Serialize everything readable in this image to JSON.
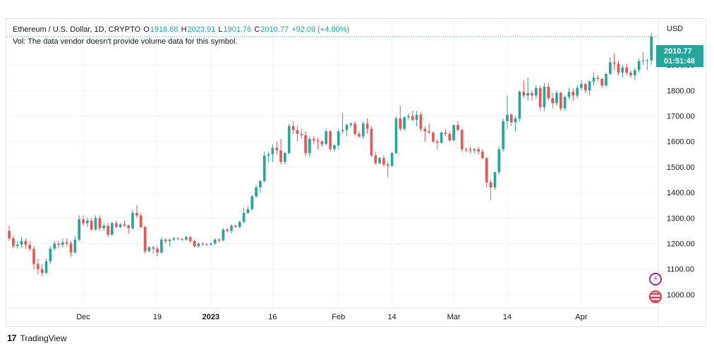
{
  "header": {
    "symbol": "Ethereum / U.S. Dollar, 1D, CRYPTO",
    "o_label": "O",
    "o_value": "1918.68",
    "h_label": "H",
    "h_value": "2023.91",
    "l_label": "L",
    "l_value": "1901.76",
    "c_label": "C",
    "c_value": "2010.77",
    "change": "+92.09 (+4.80%)",
    "volume_note": "Vol: The data vendor doesn't provide volume data for this symbol."
  },
  "price_scale": {
    "currency": "USD",
    "last_price": "2010.77",
    "countdown": "01:51:48"
  },
  "footer": {
    "brand": "TradingView"
  },
  "colors": {
    "up": "#26a69a",
    "down": "#ef5350",
    "grid": "#f0f3fa",
    "axis_text": "#131722"
  },
  "chart_data": {
    "type": "candlestick",
    "title": "Ethereum / U.S. Dollar, 1D, CRYPTO",
    "ylabel": "USD",
    "ylim": [
      950,
      2080
    ],
    "y_ticks": [
      1000,
      1100,
      1200,
      1300,
      1400,
      1500,
      1600,
      1700,
      1800,
      1900
    ],
    "x_ticks": [
      "Dec",
      "19",
      "2023",
      "16",
      "Feb",
      "14",
      "Mar",
      "14",
      "Apr"
    ],
    "x_range": [
      "2022-11-13",
      "2023-04-19"
    ],
    "x_tick_dates": [
      "2022-12-01",
      "2022-12-19",
      "2023-01-01",
      "2023-01-16",
      "2023-02-01",
      "2023-02-14",
      "2023-03-01",
      "2023-03-14",
      "2023-04-01"
    ],
    "grid": true,
    "candles": [
      [
        "2022-11-13",
        1250,
        1270,
        1210,
        1220
      ],
      [
        "2022-11-14",
        1220,
        1230,
        1180,
        1190
      ],
      [
        "2022-11-15",
        1190,
        1210,
        1180,
        1195
      ],
      [
        "2022-11-16",
        1195,
        1225,
        1185,
        1210
      ],
      [
        "2022-11-17",
        1210,
        1220,
        1180,
        1195
      ],
      [
        "2022-11-18",
        1195,
        1210,
        1170,
        1180
      ],
      [
        "2022-11-19",
        1180,
        1190,
        1100,
        1120
      ],
      [
        "2022-11-20",
        1120,
        1140,
        1080,
        1100
      ],
      [
        "2022-11-21",
        1100,
        1120,
        1070,
        1085
      ],
      [
        "2022-11-22",
        1085,
        1140,
        1080,
        1130
      ],
      [
        "2022-11-23",
        1130,
        1190,
        1120,
        1180
      ],
      [
        "2022-11-24",
        1180,
        1210,
        1170,
        1200
      ],
      [
        "2022-11-25",
        1200,
        1210,
        1180,
        1195
      ],
      [
        "2022-11-26",
        1195,
        1220,
        1185,
        1205
      ],
      [
        "2022-11-27",
        1205,
        1220,
        1190,
        1200
      ],
      [
        "2022-11-28",
        1200,
        1210,
        1150,
        1165
      ],
      [
        "2022-11-29",
        1165,
        1230,
        1160,
        1215
      ],
      [
        "2022-11-30",
        1215,
        1310,
        1210,
        1295
      ],
      [
        "2022-12-01",
        1295,
        1310,
        1270,
        1280
      ],
      [
        "2022-12-02",
        1280,
        1300,
        1265,
        1290
      ],
      [
        "2022-12-03",
        1290,
        1300,
        1250,
        1255
      ],
      [
        "2022-12-04",
        1255,
        1310,
        1250,
        1300
      ],
      [
        "2022-12-05",
        1300,
        1310,
        1250,
        1260
      ],
      [
        "2022-12-06",
        1260,
        1280,
        1250,
        1270
      ],
      [
        "2022-12-07",
        1270,
        1280,
        1225,
        1235
      ],
      [
        "2022-12-08",
        1235,
        1285,
        1230,
        1280
      ],
      [
        "2022-12-09",
        1280,
        1290,
        1260,
        1265
      ],
      [
        "2022-12-10",
        1265,
        1280,
        1260,
        1275
      ],
      [
        "2022-12-11",
        1275,
        1290,
        1265,
        1270
      ],
      [
        "2022-12-12",
        1270,
        1275,
        1240,
        1260
      ],
      [
        "2022-12-13",
        1260,
        1330,
        1255,
        1320
      ],
      [
        "2022-12-14",
        1320,
        1350,
        1300,
        1310
      ],
      [
        "2022-12-15",
        1310,
        1320,
        1260,
        1265
      ],
      [
        "2022-12-16",
        1265,
        1270,
        1160,
        1170
      ],
      [
        "2022-12-17",
        1170,
        1190,
        1165,
        1185
      ],
      [
        "2022-12-18",
        1185,
        1190,
        1160,
        1180
      ],
      [
        "2022-12-19",
        1180,
        1190,
        1150,
        1165
      ],
      [
        "2022-12-20",
        1165,
        1225,
        1160,
        1215
      ],
      [
        "2022-12-21",
        1215,
        1220,
        1200,
        1210
      ],
      [
        "2022-12-22",
        1210,
        1220,
        1190,
        1215
      ],
      [
        "2022-12-23",
        1215,
        1225,
        1210,
        1220
      ],
      [
        "2022-12-24",
        1220,
        1225,
        1215,
        1218
      ],
      [
        "2022-12-25",
        1218,
        1222,
        1210,
        1215
      ],
      [
        "2022-12-26",
        1215,
        1230,
        1210,
        1225
      ],
      [
        "2022-12-27",
        1225,
        1230,
        1200,
        1210
      ],
      [
        "2022-12-28",
        1210,
        1215,
        1185,
        1190
      ],
      [
        "2022-12-29",
        1190,
        1205,
        1185,
        1200
      ],
      [
        "2022-12-30",
        1200,
        1205,
        1190,
        1198
      ],
      [
        "2022-12-31",
        1198,
        1200,
        1192,
        1195
      ],
      [
        "2023-01-01",
        1195,
        1205,
        1192,
        1200
      ],
      [
        "2023-01-02",
        1200,
        1220,
        1195,
        1215
      ],
      [
        "2023-01-03",
        1215,
        1220,
        1205,
        1212
      ],
      [
        "2023-01-04",
        1212,
        1260,
        1210,
        1255
      ],
      [
        "2023-01-05",
        1255,
        1260,
        1245,
        1250
      ],
      [
        "2023-01-06",
        1250,
        1275,
        1240,
        1270
      ],
      [
        "2023-01-07",
        1270,
        1275,
        1262,
        1265
      ],
      [
        "2023-01-08",
        1265,
        1290,
        1260,
        1285
      ],
      [
        "2023-01-09",
        1285,
        1340,
        1280,
        1320
      ],
      [
        "2023-01-10",
        1320,
        1345,
        1315,
        1335
      ],
      [
        "2023-01-11",
        1335,
        1390,
        1330,
        1385
      ],
      [
        "2023-01-12",
        1385,
        1430,
        1380,
        1420
      ],
      [
        "2023-01-13",
        1420,
        1450,
        1400,
        1445
      ],
      [
        "2023-01-14",
        1445,
        1560,
        1440,
        1545
      ],
      [
        "2023-01-15",
        1545,
        1560,
        1520,
        1550
      ],
      [
        "2023-01-16",
        1550,
        1590,
        1520,
        1575
      ],
      [
        "2023-01-17",
        1575,
        1600,
        1550,
        1565
      ],
      [
        "2023-01-18",
        1565,
        1610,
        1510,
        1520
      ],
      [
        "2023-01-19",
        1520,
        1560,
        1510,
        1555
      ],
      [
        "2023-01-20",
        1555,
        1670,
        1550,
        1660
      ],
      [
        "2023-01-21",
        1660,
        1680,
        1630,
        1645
      ],
      [
        "2023-01-22",
        1645,
        1660,
        1600,
        1630
      ],
      [
        "2023-01-23",
        1630,
        1650,
        1610,
        1625
      ],
      [
        "2023-01-24",
        1625,
        1640,
        1540,
        1555
      ],
      [
        "2023-01-25",
        1555,
        1620,
        1540,
        1610
      ],
      [
        "2023-01-26",
        1610,
        1620,
        1590,
        1605
      ],
      [
        "2023-01-27",
        1605,
        1615,
        1570,
        1600
      ],
      [
        "2023-01-28",
        1600,
        1605,
        1580,
        1590
      ],
      [
        "2023-01-29",
        1590,
        1650,
        1585,
        1640
      ],
      [
        "2023-01-30",
        1640,
        1645,
        1560,
        1570
      ],
      [
        "2023-01-31",
        1570,
        1590,
        1560,
        1585
      ],
      [
        "2023-02-01",
        1585,
        1650,
        1570,
        1640
      ],
      [
        "2023-02-02",
        1640,
        1710,
        1630,
        1645
      ],
      [
        "2023-02-03",
        1645,
        1670,
        1620,
        1665
      ],
      [
        "2023-02-04",
        1665,
        1675,
        1655,
        1670
      ],
      [
        "2023-02-05",
        1670,
        1680,
        1620,
        1630
      ],
      [
        "2023-02-06",
        1630,
        1640,
        1615,
        1620
      ],
      [
        "2023-02-07",
        1620,
        1680,
        1610,
        1670
      ],
      [
        "2023-02-08",
        1670,
        1690,
        1630,
        1650
      ],
      [
        "2023-02-09",
        1650,
        1660,
        1540,
        1545
      ],
      [
        "2023-02-10",
        1545,
        1560,
        1510,
        1515
      ],
      [
        "2023-02-11",
        1515,
        1540,
        1510,
        1535
      ],
      [
        "2023-02-12",
        1535,
        1545,
        1500,
        1510
      ],
      [
        "2023-02-13",
        1510,
        1520,
        1460,
        1505
      ],
      [
        "2023-02-14",
        1505,
        1560,
        1500,
        1555
      ],
      [
        "2023-02-15",
        1555,
        1700,
        1550,
        1690
      ],
      [
        "2023-02-16",
        1690,
        1740,
        1640,
        1650
      ],
      [
        "2023-02-17",
        1650,
        1700,
        1640,
        1695
      ],
      [
        "2023-02-18",
        1695,
        1710,
        1685,
        1700
      ],
      [
        "2023-02-19",
        1700,
        1720,
        1680,
        1685
      ],
      [
        "2023-02-20",
        1685,
        1720,
        1660,
        1705
      ],
      [
        "2023-02-21",
        1705,
        1715,
        1640,
        1650
      ],
      [
        "2023-02-22",
        1650,
        1660,
        1600,
        1640
      ],
      [
        "2023-02-23",
        1640,
        1670,
        1630,
        1635
      ],
      [
        "2023-02-24",
        1635,
        1640,
        1595,
        1600
      ],
      [
        "2023-02-25",
        1600,
        1610,
        1570,
        1595
      ],
      [
        "2023-02-26",
        1595,
        1640,
        1590,
        1635
      ],
      [
        "2023-02-27",
        1635,
        1650,
        1620,
        1630
      ],
      [
        "2023-02-28",
        1630,
        1640,
        1600,
        1605
      ],
      [
        "2023-03-01",
        1605,
        1660,
        1600,
        1665
      ],
      [
        "2023-03-02",
        1665,
        1680,
        1640,
        1645
      ],
      [
        "2023-03-03",
        1645,
        1650,
        1560,
        1570
      ],
      [
        "2023-03-04",
        1570,
        1575,
        1560,
        1568
      ],
      [
        "2023-03-05",
        1568,
        1580,
        1555,
        1565
      ],
      [
        "2023-03-06",
        1565,
        1575,
        1555,
        1570
      ],
      [
        "2023-03-07",
        1570,
        1580,
        1550,
        1560
      ],
      [
        "2023-03-08",
        1560,
        1570,
        1530,
        1535
      ],
      [
        "2023-03-09",
        1535,
        1540,
        1420,
        1440
      ],
      [
        "2023-03-10",
        1440,
        1450,
        1370,
        1420
      ],
      [
        "2023-03-11",
        1420,
        1480,
        1410,
        1480
      ],
      [
        "2023-03-12",
        1480,
        1580,
        1470,
        1570
      ],
      [
        "2023-03-13",
        1570,
        1690,
        1560,
        1680
      ],
      [
        "2023-03-14",
        1680,
        1780,
        1650,
        1705
      ],
      [
        "2023-03-15",
        1705,
        1710,
        1660,
        1675
      ],
      [
        "2023-03-16",
        1675,
        1700,
        1640,
        1690
      ],
      [
        "2023-03-17",
        1690,
        1800,
        1680,
        1795
      ],
      [
        "2023-03-18",
        1795,
        1840,
        1770,
        1780
      ],
      [
        "2023-03-19",
        1780,
        1850,
        1760,
        1790
      ],
      [
        "2023-03-20",
        1790,
        1800,
        1760,
        1780
      ],
      [
        "2023-03-21",
        1780,
        1820,
        1765,
        1810
      ],
      [
        "2023-03-22",
        1810,
        1820,
        1720,
        1735
      ],
      [
        "2023-03-23",
        1735,
        1830,
        1720,
        1815
      ],
      [
        "2023-03-24",
        1815,
        1830,
        1760,
        1770
      ],
      [
        "2023-03-25",
        1770,
        1790,
        1730,
        1750
      ],
      [
        "2023-03-26",
        1750,
        1800,
        1740,
        1790
      ],
      [
        "2023-03-27",
        1790,
        1795,
        1720,
        1730
      ],
      [
        "2023-03-28",
        1730,
        1780,
        1720,
        1775
      ],
      [
        "2023-03-29",
        1775,
        1810,
        1765,
        1795
      ],
      [
        "2023-03-30",
        1795,
        1810,
        1760,
        1780
      ],
      [
        "2023-03-31",
        1780,
        1820,
        1770,
        1810
      ],
      [
        "2023-04-01",
        1810,
        1840,
        1800,
        1825
      ],
      [
        "2023-04-02",
        1825,
        1830,
        1790,
        1800
      ],
      [
        "2023-04-03",
        1800,
        1840,
        1780,
        1835
      ],
      [
        "2023-04-04",
        1835,
        1870,
        1820,
        1850
      ],
      [
        "2023-04-05",
        1850,
        1860,
        1835,
        1845
      ],
      [
        "2023-04-06",
        1845,
        1850,
        1810,
        1820
      ],
      [
        "2023-04-07",
        1820,
        1870,
        1815,
        1865
      ],
      [
        "2023-04-08",
        1865,
        1930,
        1860,
        1910
      ],
      [
        "2023-04-09",
        1910,
        1945,
        1880,
        1905
      ],
      [
        "2023-04-10",
        1905,
        1915,
        1860,
        1870
      ],
      [
        "2023-04-11",
        1870,
        1900,
        1850,
        1890
      ],
      [
        "2023-04-12",
        1890,
        1905,
        1860,
        1870
      ],
      [
        "2023-04-13",
        1870,
        1880,
        1850,
        1860
      ],
      [
        "2023-04-14",
        1860,
        1890,
        1840,
        1880
      ],
      [
        "2023-04-15",
        1880,
        1925,
        1870,
        1915
      ],
      [
        "2023-04-16",
        1915,
        1950,
        1900,
        1918
      ],
      [
        "2023-04-17",
        1918,
        1925,
        1880,
        1918
      ],
      [
        "2023-04-18",
        1918,
        2024,
        1901,
        2011
      ]
    ]
  }
}
